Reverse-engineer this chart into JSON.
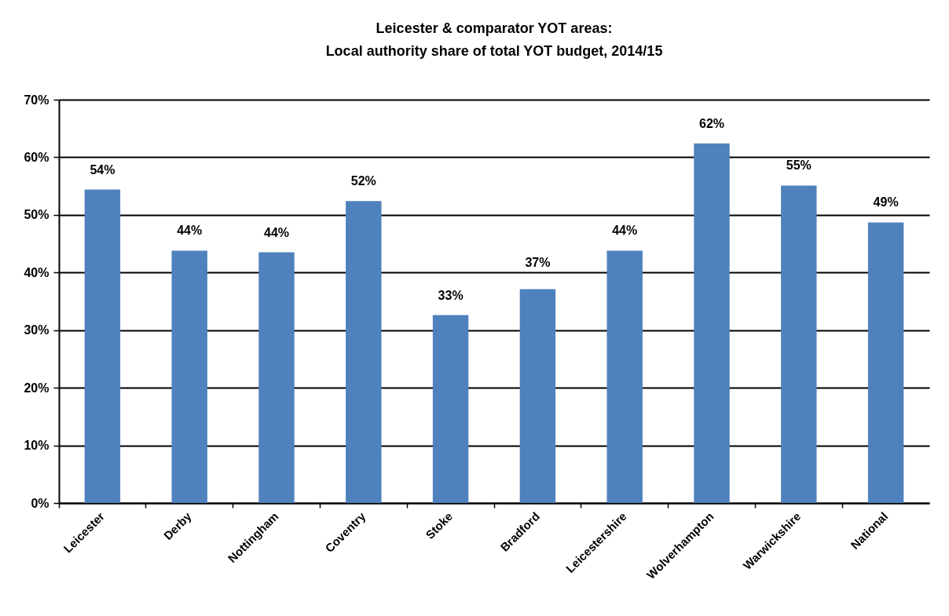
{
  "chart_data": {
    "type": "bar",
    "title": "Leicester & comparator YOT areas:\nLocal authority share of total YOT budget, 2014/15",
    "categories": [
      "Leicester",
      "Derby",
      "Nottingham",
      "Coventry",
      "Stoke",
      "Bradford",
      "Leicestershire",
      "Wolverhampton",
      "Warwickshire",
      "National"
    ],
    "values": [
      54.4,
      43.8,
      43.5,
      52.4,
      32.6,
      37.1,
      43.8,
      62.4,
      55.1,
      48.7
    ],
    "value_labels": [
      "54%",
      "44%",
      "44%",
      "52%",
      "33%",
      "37%",
      "44%",
      "62%",
      "55%",
      "49%"
    ],
    "color": "#4f81bd",
    "ylim": [
      0,
      70
    ],
    "yticks": [
      {
        "value": 0,
        "label": "0%"
      },
      {
        "value": 10,
        "label": "10%"
      },
      {
        "value": 20,
        "label": "20%"
      },
      {
        "value": 30,
        "label": "30%"
      },
      {
        "value": 40,
        "label": "40%"
      },
      {
        "value": 50,
        "label": "50%"
      },
      {
        "value": 60,
        "label": "60%"
      },
      {
        "value": 70,
        "label": "70%"
      }
    ],
    "grid": "y"
  }
}
